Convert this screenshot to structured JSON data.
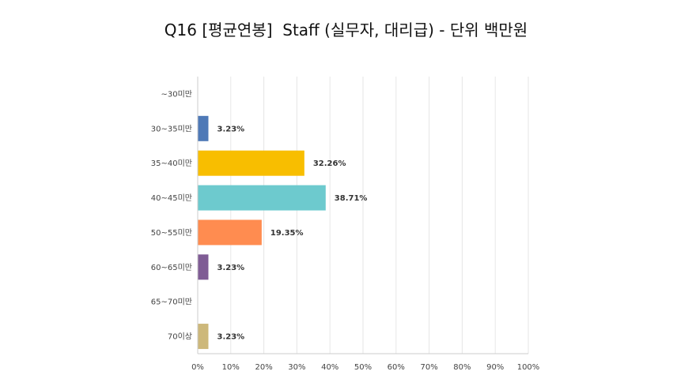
{
  "chart_data": {
    "type": "bar",
    "orientation": "horizontal",
    "title": "Q16 [평균연봉]  Staff (실무자, 대리급) - 단위 백만원",
    "categories": [
      "~30미만",
      "30~35미만",
      "35~40미만",
      "40~45미만",
      "50~55미만",
      "60~65미만",
      "65~70미만",
      "70이상"
    ],
    "values": [
      0,
      3.23,
      32.26,
      38.71,
      19.35,
      3.23,
      0,
      3.23
    ],
    "value_labels": [
      "",
      "3.23%",
      "32.26%",
      "38.71%",
      "19.35%",
      "3.23%",
      "",
      "3.23%"
    ],
    "colors": [
      "#4E79B7",
      "#4E79B7",
      "#F8BE00",
      "#6DCACE",
      "#FF8C50",
      "#7F5C95",
      "#D7B84A",
      "#CDB87A"
    ],
    "xlim": [
      0,
      100
    ],
    "xticks": [
      0,
      10,
      20,
      30,
      40,
      50,
      60,
      70,
      80,
      90,
      100
    ],
    "xtick_labels": [
      "0%",
      "10%",
      "20%",
      "30%",
      "40%",
      "50%",
      "60%",
      "70%",
      "80%",
      "90%",
      "100%"
    ],
    "grid": "vertical",
    "legend": "none",
    "xlabel": "",
    "ylabel": ""
  }
}
